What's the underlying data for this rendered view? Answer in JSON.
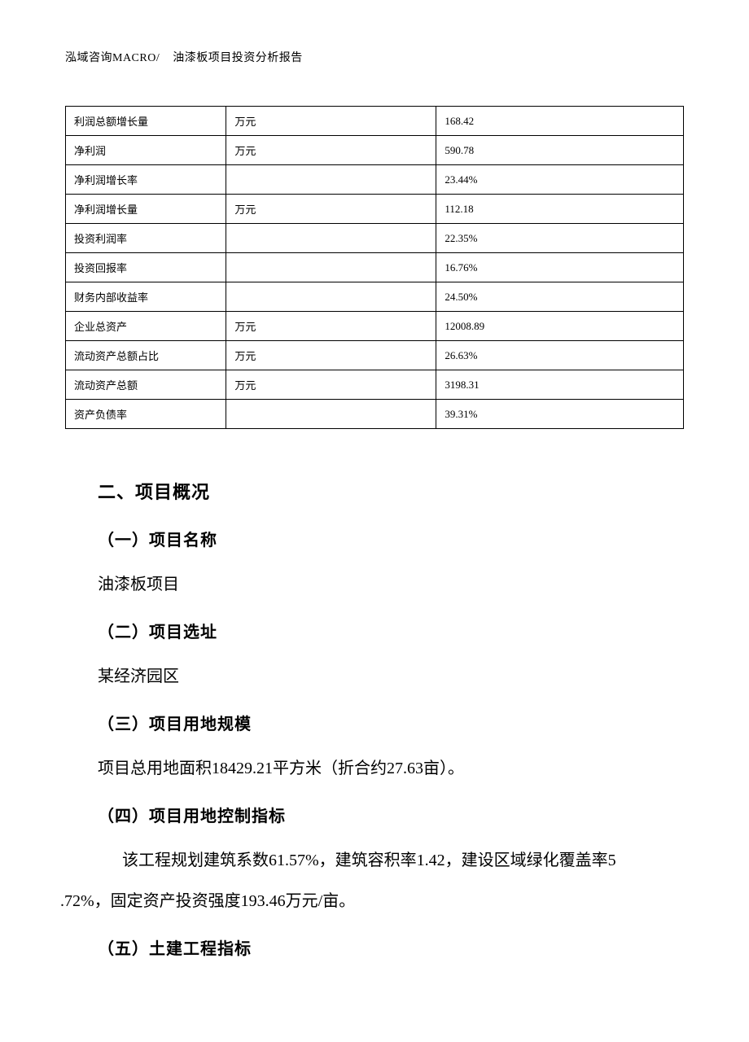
{
  "header": {
    "left": "泓域咨询MACRO/",
    "right": "油漆板项目投资分析报告"
  },
  "table": {
    "columns": {
      "name_width": "26%",
      "unit_width": "34%",
      "value_width": "40%"
    },
    "border_color": "#000000",
    "cell_font_size": 13,
    "rows": [
      {
        "name": "利润总额增长量",
        "unit": "万元",
        "value": "168.42"
      },
      {
        "name": "净利润",
        "unit": "万元",
        "value": "590.78"
      },
      {
        "name": "净利润增长率",
        "unit": "",
        "value": "23.44%"
      },
      {
        "name": "净利润增长量",
        "unit": "万元",
        "value": "112.18"
      },
      {
        "name": "投资利润率",
        "unit": "",
        "value": "22.35%"
      },
      {
        "name": "投资回报率",
        "unit": "",
        "value": "16.76%"
      },
      {
        "name": "财务内部收益率",
        "unit": "",
        "value": "24.50%"
      },
      {
        "name": "企业总资产",
        "unit": "万元",
        "value": "12008.89"
      },
      {
        "name": "流动资产总额占比",
        "unit": "万元",
        "value": "26.63%"
      },
      {
        "name": "流动资产总额",
        "unit": "万元",
        "value": "3198.31"
      },
      {
        "name": "资产负债率",
        "unit": "",
        "value": "39.31%"
      }
    ]
  },
  "section": {
    "title": "二、项目概况",
    "sub1": {
      "title": "（一）项目名称",
      "body": "油漆板项目"
    },
    "sub2": {
      "title": "（二）项目选址",
      "body": "某经济园区"
    },
    "sub3": {
      "title": "（三）项目用地规模",
      "body": "项目总用地面积18429.21平方米（折合约27.63亩）。"
    },
    "sub4": {
      "title": "（四）项目用地控制指标",
      "body_line1": "该工程规划建筑系数61.57%，建筑容积率1.42，建设区域绿化覆盖率5",
      "body_line2": ".72%，固定资产投资强度193.46万元/亩。"
    },
    "sub5": {
      "title": "（五）土建工程指标"
    }
  },
  "style": {
    "page_bg": "#ffffff",
    "text_color": "#000000",
    "body_font_size": 20,
    "heading_font_size": 22,
    "subheading_font_size": 20
  }
}
